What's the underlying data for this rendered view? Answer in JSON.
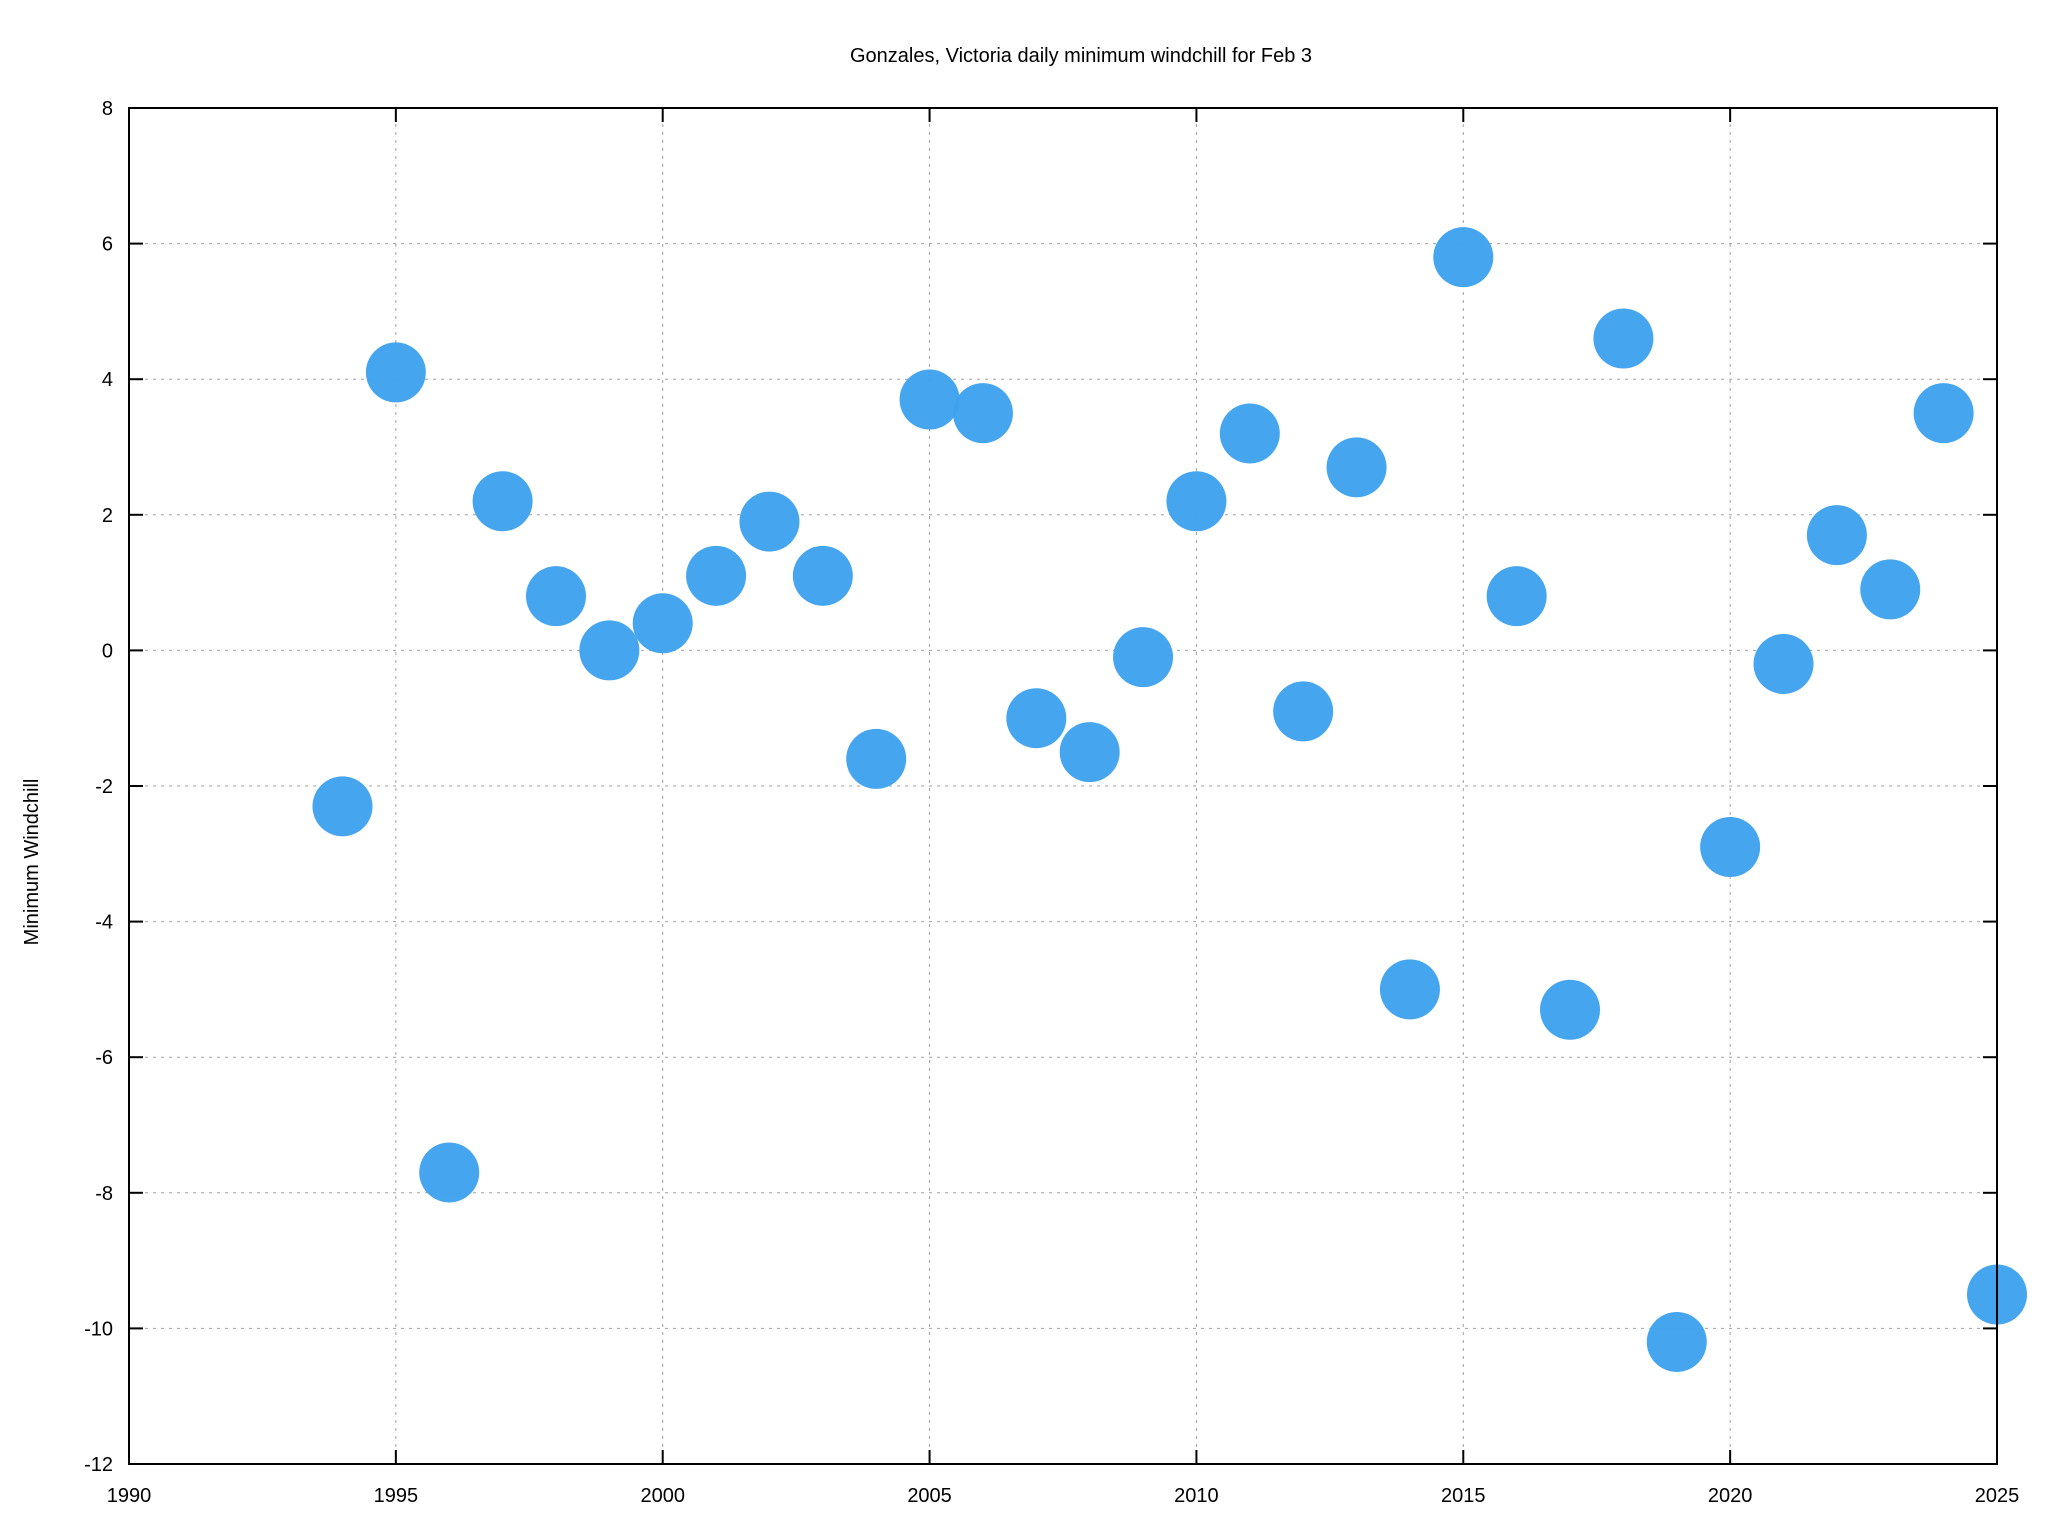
{
  "chart_data": {
    "type": "scatter",
    "title": "Gonzales, Victoria daily minimum windchill for Feb 3",
    "xlabel": "",
    "ylabel": "Minimum Windchill",
    "xlim": [
      1990,
      2025
    ],
    "ylim": [
      -12,
      8
    ],
    "xticks": [
      1990,
      1995,
      2000,
      2005,
      2010,
      2015,
      2020,
      2025
    ],
    "yticks": [
      -12,
      -10,
      -8,
      -6,
      -4,
      -2,
      0,
      2,
      4,
      6,
      8
    ],
    "grid": true,
    "marker_color": "#3fa2ee",
    "series": [
      {
        "x": [
          1994,
          1995,
          1996,
          1997,
          1998,
          1999,
          2000,
          2001,
          2002,
          2003,
          2004,
          2005,
          2006,
          2007,
          2008,
          2009,
          2010,
          2011,
          2012,
          2013,
          2014,
          2015,
          2016,
          2017,
          2018,
          2019,
          2020,
          2021,
          2022,
          2023,
          2024,
          2025
        ],
        "y": [
          -2.3,
          4.1,
          -7.7,
          2.2,
          0.8,
          0.0,
          0.4,
          1.1,
          1.9,
          1.1,
          -1.6,
          3.7,
          3.5,
          -1.0,
          -1.5,
          -0.1,
          2.2,
          3.2,
          -0.9,
          2.7,
          -5.0,
          5.8,
          0.8,
          -5.3,
          4.6,
          -10.2,
          -2.9,
          -0.2,
          1.7,
          0.9,
          3.5,
          -9.5
        ]
      }
    ]
  }
}
